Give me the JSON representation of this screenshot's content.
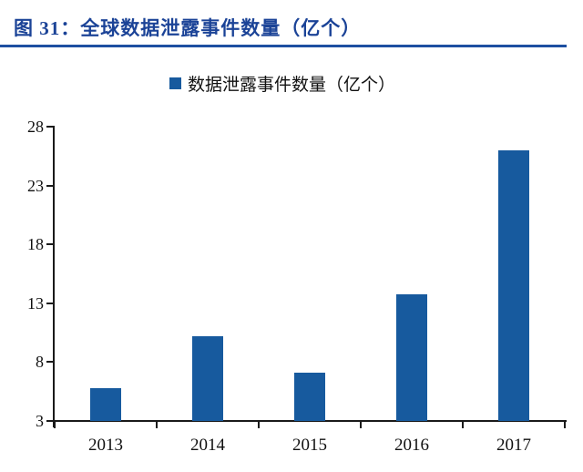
{
  "figure_header": {
    "title": "图 31：全球数据泄露事件数量（亿个）"
  },
  "legend": {
    "marker": "■",
    "label": "数据泄露事件数量（亿个）"
  },
  "colors": {
    "title_blue": "#1B4397",
    "rule_blue": "#1D4FA1",
    "bar_blue": "#175A9E",
    "axis_black": "#1A1A1A"
  },
  "chart_data": {
    "type": "bar",
    "title": "图 31：全球数据泄露事件数量（亿个）",
    "series_name": "数据泄露事件数量（亿个）",
    "categories": [
      "2013",
      "2014",
      "2015",
      "2016",
      "2017"
    ],
    "values": [
      5.75,
      10.2,
      7.1,
      13.75,
      26.0
    ],
    "xlabel": "",
    "ylabel": "",
    "ylim": [
      3,
      28
    ],
    "yticks": [
      3,
      8,
      13,
      18,
      23,
      28
    ],
    "grid": false,
    "legend_position": "top-center",
    "bar_color": "#175A9E"
  }
}
